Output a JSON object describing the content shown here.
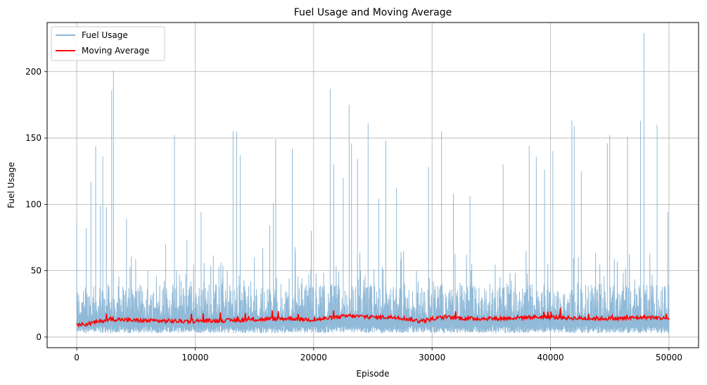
{
  "chart_data": {
    "type": "line",
    "title": "Fuel Usage and Moving Average",
    "xlabel": "Episode",
    "ylabel": "Fuel Usage",
    "xlim": [
      -2500,
      52500
    ],
    "ylim": [
      -8,
      237
    ],
    "xticks": [
      0,
      10000,
      20000,
      30000,
      40000,
      50000
    ],
    "yticks": [
      0,
      50,
      100,
      150,
      200
    ],
    "grid": true,
    "legend_position": "top-left",
    "series": [
      {
        "name": "Fuel Usage",
        "color": "#8ab6d6",
        "style": "noisy-with-spikes",
        "baseline_low": [
          3,
          9
        ],
        "baseline_high": [
          14,
          40
        ],
        "x_range": [
          0,
          50000
        ],
        "spikes": [
          [
            0,
            86
          ],
          [
            800,
            82
          ],
          [
            1200,
            117
          ],
          [
            1600,
            144
          ],
          [
            2000,
            99
          ],
          [
            2200,
            136
          ],
          [
            2500,
            98
          ],
          [
            2950,
            186
          ],
          [
            3100,
            201
          ],
          [
            4200,
            89
          ],
          [
            6000,
            50
          ],
          [
            7500,
            70
          ],
          [
            8250,
            152
          ],
          [
            9300,
            73
          ],
          [
            10500,
            94
          ],
          [
            12000,
            53
          ],
          [
            13200,
            155
          ],
          [
            13500,
            155
          ],
          [
            13800,
            137
          ],
          [
            15000,
            60
          ],
          [
            16300,
            84
          ],
          [
            16600,
            101
          ],
          [
            16800,
            149
          ],
          [
            18200,
            142
          ],
          [
            19800,
            80
          ],
          [
            21400,
            187
          ],
          [
            21700,
            130
          ],
          [
            22500,
            120
          ],
          [
            23000,
            175
          ],
          [
            23200,
            146
          ],
          [
            23700,
            134
          ],
          [
            24600,
            161
          ],
          [
            25500,
            104
          ],
          [
            26100,
            148
          ],
          [
            27000,
            112
          ],
          [
            29700,
            128
          ],
          [
            30800,
            155
          ],
          [
            31800,
            108
          ],
          [
            33200,
            106
          ],
          [
            36000,
            130
          ],
          [
            38200,
            144
          ],
          [
            38800,
            136
          ],
          [
            39500,
            126
          ],
          [
            40200,
            140
          ],
          [
            41800,
            163
          ],
          [
            42000,
            159
          ],
          [
            42600,
            125
          ],
          [
            44800,
            146
          ],
          [
            45000,
            152
          ],
          [
            46500,
            151
          ],
          [
            47600,
            163
          ],
          [
            47900,
            229
          ],
          [
            49000,
            160
          ],
          [
            49900,
            94
          ]
        ]
      },
      {
        "name": "Moving Average",
        "color": "#ff0000",
        "style": "smooth",
        "x_range": [
          0,
          50000
        ],
        "points": [
          [
            0,
            9
          ],
          [
            1000,
            10
          ],
          [
            2000,
            12
          ],
          [
            3000,
            13.5
          ],
          [
            5000,
            12.5
          ],
          [
            8000,
            12
          ],
          [
            10000,
            12
          ],
          [
            13000,
            12.5
          ],
          [
            16000,
            13.5
          ],
          [
            18000,
            14
          ],
          [
            20000,
            13
          ],
          [
            22000,
            15
          ],
          [
            23000,
            16
          ],
          [
            25000,
            15
          ],
          [
            27000,
            15
          ],
          [
            29000,
            12
          ],
          [
            31000,
            15
          ],
          [
            33000,
            14
          ],
          [
            36000,
            14
          ],
          [
            38000,
            15
          ],
          [
            40000,
            15
          ],
          [
            43000,
            14
          ],
          [
            46000,
            14
          ],
          [
            48000,
            15
          ],
          [
            50000,
            14
          ]
        ]
      }
    ]
  }
}
